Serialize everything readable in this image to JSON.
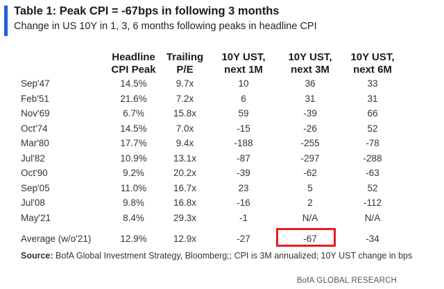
{
  "title": "Table 1: Peak CPI = -67bps in following 3 months",
  "subtitle": "Change in US 10Y in 1, 3, 6 months following peaks in headline CPI",
  "table": {
    "headers": [
      {
        "line1": "Headline",
        "line2": "CPI Peak"
      },
      {
        "line1": "Trailing",
        "line2": "P/E"
      },
      {
        "line1": "10Y UST,",
        "line2": "next 1M"
      },
      {
        "line1": "10Y UST,",
        "line2": "next 3M"
      },
      {
        "line1": "10Y UST,",
        "line2": "next 6M"
      }
    ],
    "rows": [
      {
        "label": "Sep'47",
        "cpi": "14.5%",
        "pe": "9.7x",
        "m1": "10",
        "m3": "36",
        "m6": "33"
      },
      {
        "label": "Feb'51",
        "cpi": "21.6%",
        "pe": "7.2x",
        "m1": "6",
        "m3": "31",
        "m6": "31"
      },
      {
        "label": "Nov'69",
        "cpi": "6.7%",
        "pe": "15.8x",
        "m1": "59",
        "m3": "-39",
        "m6": "66"
      },
      {
        "label": "Oct'74",
        "cpi": "14.5%",
        "pe": "7.0x",
        "m1": "-15",
        "m3": "-26",
        "m6": "52"
      },
      {
        "label": "Mar'80",
        "cpi": "17.7%",
        "pe": "9.4x",
        "m1": "-188",
        "m3": "-255",
        "m6": "-78"
      },
      {
        "label": "Jul'82",
        "cpi": "10.9%",
        "pe": "13.1x",
        "m1": "-87",
        "m3": "-297",
        "m6": "-288"
      },
      {
        "label": "Oct'90",
        "cpi": "9.2%",
        "pe": "20.2x",
        "m1": "-39",
        "m3": "-62",
        "m6": "-63"
      },
      {
        "label": "Sep'05",
        "cpi": "11.0%",
        "pe": "16.7x",
        "m1": "23",
        "m3": "5",
        "m6": "52"
      },
      {
        "label": "Jul'08",
        "cpi": "9.8%",
        "pe": "16.8x",
        "m1": "-16",
        "m3": "2",
        "m6": "-112"
      },
      {
        "label": "May'21",
        "cpi": "8.4%",
        "pe": "29.3x",
        "m1": "-1",
        "m3": "N/A",
        "m6": "N/A"
      }
    ],
    "average": {
      "label": "Average (w/o'21)",
      "cpi": "12.9%",
      "pe": "12.9x",
      "m1": "-27",
      "m3": "-67",
      "m6": "-34"
    }
  },
  "source": {
    "label": "Source:",
    "text": "BofA Global Investment Strategy, Bloomberg;; CPI is 3M annualized; 10Y UST change in bps"
  },
  "brand": "BofA GLOBAL RESEARCH",
  "colors": {
    "accent_bar": "#1f5fd6",
    "highlight_box": "#e31b23"
  }
}
